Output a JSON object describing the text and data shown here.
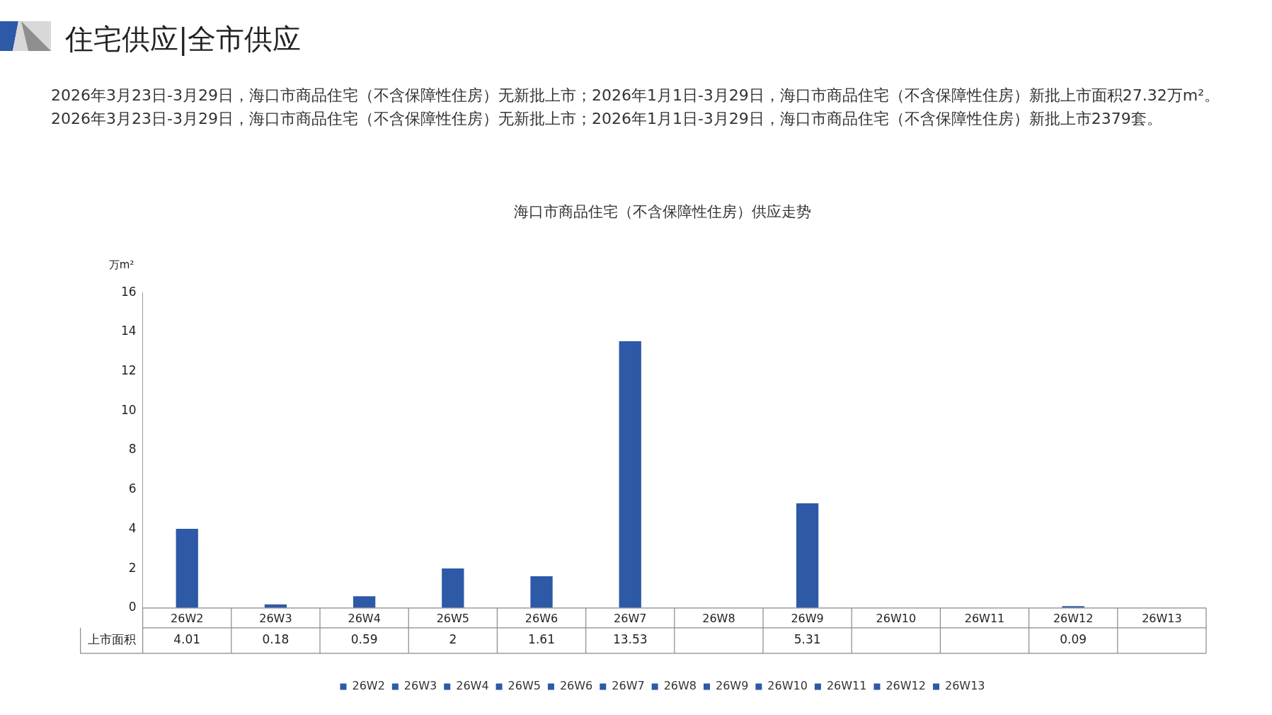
{
  "chart_data": {
    "type": "bar",
    "title": "海口市商品住宅（不含保障性住房）供应走势",
    "subtitle": "2026年3月23日-3月29日，海口市商品住宅（不含保障性住房）无新批上市；2026年1月1日-3月29日，海口市商品住宅（不含保障性住房）新批上市面积27.32万m²。2026年3月23日-3月29日，海口市商品住宅（不含保障性住房）无新批上市；2026年1月1日-3月29日，海口市商品住宅（不含保障性住房）新批上市2379套。",
    "annotations": [
      "住宅供应|全市供应",
      "上市面积"
    ],
    "ylabel": "万m²",
    "categories": [
      "26W2",
      "26W3",
      "26W4",
      "26W5",
      "26W6",
      "26W7",
      "26W8",
      "26W9",
      "26W10",
      "26W11",
      "26W12",
      "26W13"
    ],
    "series": [
      {
        "name": "26W2",
        "color": "#2e59a7",
        "values": [
          4.01,
          null,
          null,
          null,
          null,
          null,
          null,
          null,
          null,
          null,
          null,
          null
        ]
      },
      {
        "name": "26W3",
        "color": "#2e59a7",
        "values": [
          null,
          0.18,
          null,
          null,
          null,
          null,
          null,
          null,
          null,
          null,
          null,
          null
        ]
      },
      {
        "name": "26W4",
        "color": "#2e59a7",
        "values": [
          null,
          null,
          0.59,
          null,
          null,
          null,
          null,
          null,
          null,
          null,
          null,
          null
        ]
      },
      {
        "name": "26W5",
        "color": "#2e59a7",
        "values": [
          null,
          null,
          null,
          2,
          null,
          null,
          null,
          null,
          null,
          null,
          null,
          null
        ]
      },
      {
        "name": "26W6",
        "color": "#2e59a7",
        "values": [
          null,
          null,
          null,
          null,
          1.61,
          null,
          null,
          null,
          null,
          null,
          null,
          null
        ]
      },
      {
        "name": "26W7",
        "color": "#2e59a7",
        "values": [
          null,
          null,
          null,
          null,
          null,
          13.53,
          null,
          null,
          null,
          null,
          null,
          null
        ]
      },
      {
        "name": "26W8",
        "color": "#2e59a7",
        "values": [
          null,
          null,
          null,
          null,
          null,
          null,
          null,
          null,
          null,
          null,
          null,
          null
        ]
      },
      {
        "name": "26W9",
        "color": "#2e59a7",
        "values": [
          null,
          null,
          null,
          null,
          null,
          null,
          null,
          5.31,
          null,
          null,
          null,
          null
        ]
      },
      {
        "name": "26W10",
        "color": "#2e59a7",
        "values": [
          null,
          null,
          null,
          null,
          null,
          null,
          null,
          null,
          null,
          null,
          null,
          null
        ]
      },
      {
        "name": "26W11",
        "color": "#2e59a7",
        "values": [
          null,
          null,
          null,
          null,
          null,
          null,
          null,
          null,
          null,
          null,
          null,
          null
        ]
      },
      {
        "name": "26W12",
        "color": "#2e59a7",
        "values": [
          null,
          null,
          null,
          null,
          null,
          null,
          null,
          null,
          null,
          null,
          0.09,
          null
        ]
      },
      {
        "name": "26W13",
        "color": "#2e59a7",
        "values": [
          null,
          null,
          null,
          null,
          null,
          null,
          null,
          null,
          null,
          null,
          null,
          null
        ]
      }
    ],
    "ylim": [
      0,
      16
    ],
    "yticks": [
      0,
      2,
      4,
      6,
      8,
      10,
      12,
      14,
      16
    ],
    "data_labels": true,
    "legend": "bottom"
  }
}
